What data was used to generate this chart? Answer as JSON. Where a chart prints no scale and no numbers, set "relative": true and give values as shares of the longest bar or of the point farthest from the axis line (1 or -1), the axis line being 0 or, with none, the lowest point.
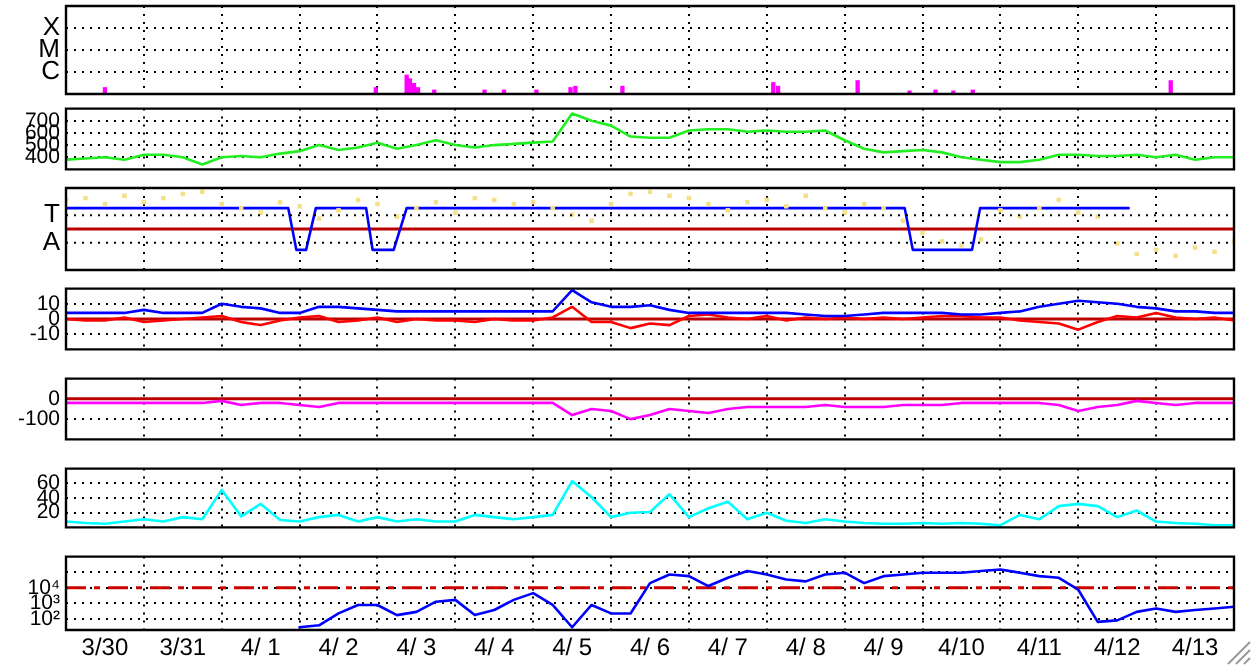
{
  "chart_data": [
    {
      "type": "bar",
      "relative": true,
      "grid": true,
      "tick_labels": "y",
      "xlim": [
        "--03-30",
        "--04-14"
      ],
      "xticks": [
        {
          "value": "--03-30",
          "label": null
        },
        {
          "value": "--03-31",
          "label": null
        },
        {
          "value": "--04-01",
          "label": null
        },
        {
          "value": "--04-02",
          "label": null
        },
        {
          "value": "--04-03",
          "label": null
        },
        {
          "value": "--04-04",
          "label": null
        },
        {
          "value": "--04-05",
          "label": null
        },
        {
          "value": "--04-06",
          "label": null
        },
        {
          "value": "--04-07",
          "label": null
        },
        {
          "value": "--04-08",
          "label": null
        },
        {
          "value": "--04-09",
          "label": null
        },
        {
          "value": "--04-10",
          "label": null
        },
        {
          "value": "--04-11",
          "label": null
        },
        {
          "value": "--04-12",
          "label": null
        },
        {
          "value": "--04-13",
          "label": null
        },
        {
          "value": "--04-14",
          "label": null
        }
      ],
      "annotations": [
        "C",
        "M",
        "X"
      ],
      "series": [
        {
          "color": "#ff00ff",
          "x": [
            "--03-30T12:00",
            "--04-02T23:30",
            "--04-03T09:00",
            "--04-03T10:00",
            "--04-03T11:15",
            "--04-03T12:30",
            "--04-03T17:30",
            "--04-04T09:00",
            "--04-04T15:00",
            "--04-05T01:00",
            "--04-05T11:30",
            "--04-05T13:00",
            "--04-06T03:30",
            "--04-08T02:00",
            "--04-08T03:30",
            "--04-09T04:00",
            "--04-09T20:00",
            "--04-10T04:00",
            "--04-10T09:30",
            "--04-10T15:30",
            "--04-13T04:30"
          ],
          "values": [
            0.33,
            0.33,
            1,
            0.8,
            0.55,
            0.33,
            0.2,
            0.2,
            0.2,
            0.2,
            0.33,
            0.4,
            0.4,
            0.6,
            0.4,
            0.7,
            0.15,
            0.2,
            0.15,
            0.2,
            0.7
          ]
        }
      ]
    },
    {
      "type": "line",
      "grid": true,
      "tick_labels": "y",
      "marker": "none",
      "xlim": [
        "--03-30",
        "--04-14"
      ],
      "xticks": [
        {
          "value": "--03-30",
          "label": null
        },
        {
          "value": "--03-31",
          "label": null
        },
        {
          "value": "--04-01",
          "label": null
        },
        {
          "value": "--04-02",
          "label": null
        },
        {
          "value": "--04-03",
          "label": null
        },
        {
          "value": "--04-04",
          "label": null
        },
        {
          "value": "--04-05",
          "label": null
        },
        {
          "value": "--04-06",
          "label": null
        },
        {
          "value": "--04-07",
          "label": null
        },
        {
          "value": "--04-08",
          "label": null
        },
        {
          "value": "--04-09",
          "label": null
        },
        {
          "value": "--04-10",
          "label": null
        },
        {
          "value": "--04-11",
          "label": null
        },
        {
          "value": "--04-12",
          "label": null
        },
        {
          "value": "--04-13",
          "label": null
        },
        {
          "value": "--04-14",
          "label": null
        }
      ],
      "ylim": [
        300,
        800
      ],
      "yticks": [
        400,
        500,
        600,
        700
      ],
      "x": [
        "--03-30T00:00",
        "--03-30T06:00",
        "--03-30T12:00",
        "--03-30T18:00",
        "--03-31T00:00",
        "--03-31T06:00",
        "--03-31T12:00",
        "--03-31T18:00",
        "--04-01T00:00",
        "--04-01T06:00",
        "--04-01T12:00",
        "--04-01T18:00",
        "--04-02T00:00",
        "--04-02T06:00",
        "--04-02T12:00",
        "--04-02T18:00",
        "--04-03T00:00",
        "--04-03T06:00",
        "--04-03T12:00",
        "--04-03T18:00",
        "--04-04T00:00",
        "--04-04T06:00",
        "--04-04T12:00",
        "--04-04T18:00",
        "--04-05T00:00",
        "--04-05T06:00",
        "--04-05T12:00",
        "--04-05T18:00",
        "--04-06T00:00",
        "--04-06T06:00",
        "--04-06T12:00",
        "--04-06T18:00",
        "--04-07T00:00",
        "--04-07T06:00",
        "--04-07T12:00",
        "--04-07T18:00",
        "--04-08T00:00",
        "--04-08T06:00",
        "--04-08T12:00",
        "--04-08T18:00",
        "--04-09T00:00",
        "--04-09T06:00",
        "--04-09T12:00",
        "--04-09T18:00",
        "--04-10T00:00",
        "--04-10T06:00",
        "--04-10T12:00",
        "--04-10T18:00",
        "--04-11T00:00",
        "--04-11T06:00",
        "--04-11T12:00",
        "--04-11T18:00",
        "--04-12T00:00",
        "--04-12T06:00",
        "--04-12T12:00",
        "--04-12T18:00",
        "--04-13T00:00",
        "--04-13T06:00",
        "--04-13T12:00",
        "--04-13T18:00",
        "--04-14T00:00"
      ],
      "series": [
        {
          "color": "#22ee22",
          "values": [
            380,
            390,
            400,
            380,
            420,
            420,
            400,
            340,
            400,
            410,
            400,
            430,
            450,
            500,
            460,
            480,
            520,
            470,
            500,
            540,
            500,
            480,
            500,
            510,
            520,
            530,
            760,
            700,
            660,
            570,
            560,
            560,
            620,
            630,
            630,
            610,
            620,
            610,
            610,
            620,
            540,
            470,
            440,
            450,
            460,
            440,
            400,
            380,
            360,
            360,
            380,
            420,
            420,
            410,
            410,
            420,
            400,
            420,
            380,
            400,
            400
          ]
        }
      ]
    },
    {
      "type": "line",
      "relative": true,
      "grid": true,
      "tick_labels": "y",
      "xlim": [
        "--03-30",
        "--04-14"
      ],
      "xticks": [
        {
          "value": "--03-30",
          "label": null
        },
        {
          "value": "--03-31",
          "label": null
        },
        {
          "value": "--04-01",
          "label": null
        },
        {
          "value": "--04-02",
          "label": null
        },
        {
          "value": "--04-03",
          "label": null
        },
        {
          "value": "--04-04",
          "label": null
        },
        {
          "value": "--04-05",
          "label": null
        },
        {
          "value": "--04-06",
          "label": null
        },
        {
          "value": "--04-07",
          "label": null
        },
        {
          "value": "--04-08",
          "label": null
        },
        {
          "value": "--04-09",
          "label": null
        },
        {
          "value": "--04-10",
          "label": null
        },
        {
          "value": "--04-11",
          "label": null
        },
        {
          "value": "--04-12",
          "label": null
        },
        {
          "value": "--04-13",
          "label": null
        },
        {
          "value": "--04-14",
          "label": null
        }
      ],
      "annotations": [
        "A",
        "T"
      ],
      "ref_lines": [
        {
          "axis": "y",
          "value": 0,
          "color": "#bb0000"
        }
      ],
      "x": [
        "--03-30T00:00",
        "--03-30T06:00",
        "--03-30T12:00",
        "--03-30T18:00",
        "--03-31T00:00",
        "--03-31T06:00",
        "--03-31T12:00",
        "--03-31T18:00",
        "--04-01T00:00",
        "--04-01T06:00",
        "--04-01T12:00",
        "--04-01T18:00",
        "--04-02T00:00",
        "--04-02T06:00",
        "--04-02T12:00",
        "--04-02T18:00",
        "--04-03T00:00",
        "--04-03T06:00",
        "--04-03T12:00",
        "--04-03T18:00",
        "--04-04T00:00",
        "--04-04T06:00",
        "--04-04T12:00",
        "--04-04T18:00",
        "--04-05T00:00",
        "--04-05T06:00",
        "--04-05T12:00",
        "--04-05T18:00",
        "--04-06T00:00",
        "--04-06T06:00",
        "--04-06T12:00",
        "--04-06T18:00",
        "--04-07T00:00",
        "--04-07T06:00",
        "--04-07T12:00",
        "--04-07T18:00",
        "--04-08T00:00",
        "--04-08T06:00",
        "--04-08T12:00",
        "--04-08T18:00",
        "--04-09T00:00",
        "--04-09T06:00",
        "--04-09T12:00",
        "--04-09T18:00",
        "--04-10T00:00",
        "--04-10T06:00",
        "--04-10T12:00",
        "--04-10T18:00",
        "--04-11T00:00",
        "--04-11T06:00",
        "--04-11T12:00",
        "--04-11T18:00",
        "--04-12T00:00",
        "--04-12T06:00",
        "--04-12T12:00",
        "--04-12T18:00",
        "--04-13T00:00",
        "--04-13T06:00",
        "--04-13T12:00",
        "--04-13T18:00",
        "--04-14T00:00"
      ],
      "series": [
        {
          "type": "scatter",
          "marker": "square",
          "color": "#f5e08a",
          "values": [
            0.78,
            0.83,
            0.67,
            0.89,
            0.72,
            0.83,
            0.94,
            1,
            0.67,
            0.56,
            0.44,
            0.72,
            0.61,
            0.28,
            0.5,
            0.78,
            0.67,
            0.33,
            0.56,
            0.72,
            0.44,
            0.83,
            0.78,
            0.67,
            0.72,
            0.56,
            0.39,
            0.22,
            0.67,
            0.94,
            1,
            0.89,
            0.83,
            0.67,
            0.5,
            0.72,
            0.78,
            0.61,
            0.89,
            0.56,
            0.44,
            0.67,
            0.56,
            0.22,
            -0.11,
            -0.33,
            -0.44,
            -0.28,
            0.5,
            0.33,
            0.56,
            0.78,
            0.44,
            0.33,
            -0.39,
            -0.67,
            -0.56,
            -0.72,
            -0.5,
            -0.61,
            -0.33
          ]
        },
        {
          "marker": "none",
          "color": "#0000ff",
          "x": [
            "--03-30T00:00",
            "--04-01T20:30",
            "--04-01T23:00",
            "--04-02T02:00",
            "--04-02T05:00",
            "--04-02T20:30",
            "--04-02T22:30",
            "--04-03T05:00",
            "--04-03T09:00",
            "--04-09T18:30",
            "--04-09T21:00",
            "--04-10T15:15",
            "--04-10T17:45",
            "--04-12T15:30"
          ],
          "values": [
            0.56,
            0.56,
            -0.56,
            -0.56,
            0.56,
            0.56,
            -0.56,
            -0.56,
            0.56,
            0.56,
            -0.56,
            -0.56,
            0.56,
            0.56
          ]
        }
      ]
    },
    {
      "type": "line",
      "grid": true,
      "tick_labels": "y",
      "marker": "none",
      "xlim": [
        "--03-30",
        "--04-14"
      ],
      "xticks": [
        {
          "value": "--03-30",
          "label": null
        },
        {
          "value": "--03-31",
          "label": null
        },
        {
          "value": "--04-01",
          "label": null
        },
        {
          "value": "--04-02",
          "label": null
        },
        {
          "value": "--04-03",
          "label": null
        },
        {
          "value": "--04-04",
          "label": null
        },
        {
          "value": "--04-05",
          "label": null
        },
        {
          "value": "--04-06",
          "label": null
        },
        {
          "value": "--04-07",
          "label": null
        },
        {
          "value": "--04-08",
          "label": null
        },
        {
          "value": "--04-09",
          "label": null
        },
        {
          "value": "--04-10",
          "label": null
        },
        {
          "value": "--04-11",
          "label": null
        },
        {
          "value": "--04-12",
          "label": null
        },
        {
          "value": "--04-13",
          "label": null
        },
        {
          "value": "--04-14",
          "label": null
        }
      ],
      "ylim": [
        -20,
        20
      ],
      "yticks": [
        -10,
        0,
        10
      ],
      "ref_lines": [
        {
          "axis": "y",
          "value": 0,
          "color": "#bb0000"
        }
      ],
      "x": [
        "--03-30T00:00",
        "--03-30T06:00",
        "--03-30T12:00",
        "--03-30T18:00",
        "--03-31T00:00",
        "--03-31T06:00",
        "--03-31T12:00",
        "--03-31T18:00",
        "--04-01T00:00",
        "--04-01T06:00",
        "--04-01T12:00",
        "--04-01T18:00",
        "--04-02T00:00",
        "--04-02T06:00",
        "--04-02T12:00",
        "--04-02T18:00",
        "--04-03T00:00",
        "--04-03T06:00",
        "--04-03T12:00",
        "--04-03T18:00",
        "--04-04T00:00",
        "--04-04T06:00",
        "--04-04T12:00",
        "--04-04T18:00",
        "--04-05T00:00",
        "--04-05T06:00",
        "--04-05T12:00",
        "--04-05T18:00",
        "--04-06T00:00",
        "--04-06T06:00",
        "--04-06T12:00",
        "--04-06T18:00",
        "--04-07T00:00",
        "--04-07T06:00",
        "--04-07T12:00",
        "--04-07T18:00",
        "--04-08T00:00",
        "--04-08T06:00",
        "--04-08T12:00",
        "--04-08T18:00",
        "--04-09T00:00",
        "--04-09T06:00",
        "--04-09T12:00",
        "--04-09T18:00",
        "--04-10T00:00",
        "--04-10T06:00",
        "--04-10T12:00",
        "--04-10T18:00",
        "--04-11T00:00",
        "--04-11T06:00",
        "--04-11T12:00",
        "--04-11T18:00",
        "--04-12T00:00",
        "--04-12T06:00",
        "--04-12T12:00",
        "--04-12T18:00",
        "--04-13T00:00",
        "--04-13T06:00",
        "--04-13T12:00",
        "--04-13T18:00",
        "--04-14T00:00"
      ],
      "series": [
        {
          "color": "#0000ff",
          "values": [
            4,
            4,
            4,
            4,
            6,
            4,
            4,
            4,
            10,
            8,
            7,
            4,
            4,
            8,
            8,
            7,
            6,
            5,
            5,
            5,
            5,
            5,
            5,
            5,
            5,
            5,
            19,
            11,
            8,
            8,
            9,
            6,
            4,
            4,
            4,
            4,
            4,
            4,
            3,
            2,
            2,
            3,
            4,
            4,
            4,
            4,
            3,
            3,
            4,
            5,
            8,
            10,
            12,
            11,
            10,
            8,
            7,
            5,
            5,
            4,
            4
          ]
        },
        {
          "color": "#ff0000",
          "values": [
            0,
            -1,
            -1,
            1,
            -2,
            -1,
            0,
            1,
            2,
            -2,
            -4,
            -1,
            1,
            2,
            -2,
            -1,
            1,
            -2,
            0,
            -1,
            -1,
            -2,
            0,
            -1,
            -1,
            1,
            8,
            -2,
            -2,
            -6,
            -3,
            -4,
            2,
            3,
            1,
            0,
            2,
            -1,
            1,
            0,
            1,
            0,
            1,
            0,
            1,
            2,
            2,
            1,
            1,
            -1,
            -2,
            -3,
            -7,
            -2,
            2,
            1,
            4,
            1,
            0,
            1,
            -1
          ]
        }
      ]
    },
    {
      "type": "line",
      "grid": true,
      "tick_labels": "y",
      "marker": "none",
      "xlim": [
        "--03-30",
        "--04-14"
      ],
      "xticks": [
        {
          "value": "--03-30",
          "label": null
        },
        {
          "value": "--03-31",
          "label": null
        },
        {
          "value": "--04-01",
          "label": null
        },
        {
          "value": "--04-02",
          "label": null
        },
        {
          "value": "--04-03",
          "label": null
        },
        {
          "value": "--04-04",
          "label": null
        },
        {
          "value": "--04-05",
          "label": null
        },
        {
          "value": "--04-06",
          "label": null
        },
        {
          "value": "--04-07",
          "label": null
        },
        {
          "value": "--04-08",
          "label": null
        },
        {
          "value": "--04-09",
          "label": null
        },
        {
          "value": "--04-10",
          "label": null
        },
        {
          "value": "--04-11",
          "label": null
        },
        {
          "value": "--04-12",
          "label": null
        },
        {
          "value": "--04-13",
          "label": null
        },
        {
          "value": "--04-14",
          "label": null
        }
      ],
      "ylim": [
        -200,
        100
      ],
      "yticks": [
        -100,
        0
      ],
      "ref_lines": [
        {
          "axis": "y",
          "value": 0,
          "color": "#bb0000"
        }
      ],
      "x": [
        "--03-30T00:00",
        "--03-30T06:00",
        "--03-30T12:00",
        "--03-30T18:00",
        "--03-31T00:00",
        "--03-31T06:00",
        "--03-31T12:00",
        "--03-31T18:00",
        "--04-01T00:00",
        "--04-01T06:00",
        "--04-01T12:00",
        "--04-01T18:00",
        "--04-02T00:00",
        "--04-02T06:00",
        "--04-02T12:00",
        "--04-02T18:00",
        "--04-03T00:00",
        "--04-03T06:00",
        "--04-03T12:00",
        "--04-03T18:00",
        "--04-04T00:00",
        "--04-04T06:00",
        "--04-04T12:00",
        "--04-04T18:00",
        "--04-05T00:00",
        "--04-05T06:00",
        "--04-05T12:00",
        "--04-05T18:00",
        "--04-06T00:00",
        "--04-06T06:00",
        "--04-06T12:00",
        "--04-06T18:00",
        "--04-07T00:00",
        "--04-07T06:00",
        "--04-07T12:00",
        "--04-07T18:00",
        "--04-08T00:00",
        "--04-08T06:00",
        "--04-08T12:00",
        "--04-08T18:00",
        "--04-09T00:00",
        "--04-09T06:00",
        "--04-09T12:00",
        "--04-09T18:00",
        "--04-10T00:00",
        "--04-10T06:00",
        "--04-10T12:00",
        "--04-10T18:00",
        "--04-11T00:00",
        "--04-11T06:00",
        "--04-11T12:00",
        "--04-11T18:00",
        "--04-12T00:00",
        "--04-12T06:00",
        "--04-12T12:00",
        "--04-12T18:00",
        "--04-13T00:00",
        "--04-13T06:00",
        "--04-13T12:00",
        "--04-13T18:00",
        "--04-14T00:00"
      ],
      "series": [
        {
          "color": "#ff00ff",
          "values": [
            -20,
            -20,
            -20,
            -20,
            -20,
            -20,
            -20,
            -20,
            -10,
            -30,
            -20,
            -20,
            -30,
            -40,
            -20,
            -20,
            -20,
            -20,
            -20,
            -20,
            -20,
            -20,
            -20,
            -20,
            -20,
            -20,
            -80,
            -50,
            -60,
            -100,
            -80,
            -50,
            -60,
            -70,
            -50,
            -40,
            -40,
            -40,
            -40,
            -30,
            -40,
            -40,
            -40,
            -30,
            -30,
            -30,
            -20,
            -20,
            -20,
            -20,
            -20,
            -30,
            -60,
            -40,
            -30,
            -10,
            -20,
            -30,
            -20,
            -20,
            -20
          ]
        }
      ]
    },
    {
      "type": "line",
      "grid": true,
      "tick_labels": "y",
      "marker": "none",
      "xlim": [
        "--03-30",
        "--04-14"
      ],
      "xticks": [
        {
          "value": "--03-30",
          "label": null
        },
        {
          "value": "--03-31",
          "label": null
        },
        {
          "value": "--04-01",
          "label": null
        },
        {
          "value": "--04-02",
          "label": null
        },
        {
          "value": "--04-03",
          "label": null
        },
        {
          "value": "--04-04",
          "label": null
        },
        {
          "value": "--04-05",
          "label": null
        },
        {
          "value": "--04-06",
          "label": null
        },
        {
          "value": "--04-07",
          "label": null
        },
        {
          "value": "--04-08",
          "label": null
        },
        {
          "value": "--04-09",
          "label": null
        },
        {
          "value": "--04-10",
          "label": null
        },
        {
          "value": "--04-11",
          "label": null
        },
        {
          "value": "--04-12",
          "label": null
        },
        {
          "value": "--04-13",
          "label": null
        },
        {
          "value": "--04-14",
          "label": null
        }
      ],
      "ylim": [
        0,
        80
      ],
      "yticks": [
        20,
        40,
        60
      ],
      "x": [
        "--03-30T00:00",
        "--03-30T06:00",
        "--03-30T12:00",
        "--03-30T18:00",
        "--03-31T00:00",
        "--03-31T06:00",
        "--03-31T12:00",
        "--03-31T18:00",
        "--04-01T00:00",
        "--04-01T06:00",
        "--04-01T12:00",
        "--04-01T18:00",
        "--04-02T00:00",
        "--04-02T06:00",
        "--04-02T12:00",
        "--04-02T18:00",
        "--04-03T00:00",
        "--04-03T06:00",
        "--04-03T12:00",
        "--04-03T18:00",
        "--04-04T00:00",
        "--04-04T06:00",
        "--04-04T12:00",
        "--04-04T18:00",
        "--04-05T00:00",
        "--04-05T06:00",
        "--04-05T12:00",
        "--04-05T18:00",
        "--04-06T00:00",
        "--04-06T06:00",
        "--04-06T12:00",
        "--04-06T18:00",
        "--04-07T00:00",
        "--04-07T06:00",
        "--04-07T12:00",
        "--04-07T18:00",
        "--04-08T00:00",
        "--04-08T06:00",
        "--04-08T12:00",
        "--04-08T18:00",
        "--04-09T00:00",
        "--04-09T06:00",
        "--04-09T12:00",
        "--04-09T18:00",
        "--04-10T00:00",
        "--04-10T06:00",
        "--04-10T12:00",
        "--04-10T18:00",
        "--04-11T00:00",
        "--04-11T06:00",
        "--04-11T12:00",
        "--04-11T18:00",
        "--04-12T00:00",
        "--04-12T06:00",
        "--04-12T12:00",
        "--04-12T18:00",
        "--04-13T00:00",
        "--04-13T06:00",
        "--04-13T12:00",
        "--04-13T18:00",
        "--04-14T00:00"
      ],
      "series": [
        {
          "color": "#00ffff",
          "values": [
            8,
            6,
            5,
            8,
            11,
            8,
            14,
            11,
            51,
            15,
            32,
            10,
            8,
            14,
            17,
            8,
            14,
            8,
            11,
            8,
            8,
            17,
            14,
            11,
            14,
            17,
            63,
            41,
            14,
            20,
            21,
            45,
            14,
            26,
            35,
            11,
            20,
            9,
            6,
            11,
            8,
            6,
            5,
            5,
            6,
            5,
            6,
            5,
            3,
            17,
            11,
            29,
            32,
            29,
            14,
            23,
            8,
            6,
            5,
            3,
            3
          ]
        }
      ]
    },
    {
      "type": "line",
      "log": true,
      "grid": true,
      "marker": "none",
      "xlim": [
        "--03-30",
        "--04-14"
      ],
      "xticks": [
        {
          "value": "--03-30",
          "label": null
        },
        {
          "value": "--03-30T12:00",
          "label": "3/30"
        },
        {
          "value": "--03-31",
          "label": null
        },
        {
          "value": "--03-31T12:00",
          "label": "3/31"
        },
        {
          "value": "--04-01",
          "label": null
        },
        {
          "value": "--04-01T12:00",
          "label": "4/ 1"
        },
        {
          "value": "--04-02",
          "label": null
        },
        {
          "value": "--04-02T12:00",
          "label": "4/ 2"
        },
        {
          "value": "--04-03",
          "label": null
        },
        {
          "value": "--04-03T12:00",
          "label": "4/ 3"
        },
        {
          "value": "--04-04",
          "label": null
        },
        {
          "value": "--04-04T12:00",
          "label": "4/ 4"
        },
        {
          "value": "--04-05",
          "label": null
        },
        {
          "value": "--04-05T12:00",
          "label": "4/ 5"
        },
        {
          "value": "--04-06",
          "label": null
        },
        {
          "value": "--04-06T12:00",
          "label": "4/ 6"
        },
        {
          "value": "--04-07",
          "label": null
        },
        {
          "value": "--04-07T12:00",
          "label": "4/ 7"
        },
        {
          "value": "--04-08",
          "label": null
        },
        {
          "value": "--04-08T12:00",
          "label": "4/ 8"
        },
        {
          "value": "--04-09",
          "label": null
        },
        {
          "value": "--04-09T12:00",
          "label": "4/ 9"
        },
        {
          "value": "--04-10",
          "label": null
        },
        {
          "value": "--04-10T12:00",
          "label": "4/10"
        },
        {
          "value": "--04-11",
          "label": null
        },
        {
          "value": "--04-11T12:00",
          "label": "4/11"
        },
        {
          "value": "--04-12",
          "label": null
        },
        {
          "value": "--04-12T12:00",
          "label": "4/12"
        },
        {
          "value": "--04-13",
          "label": null
        },
        {
          "value": "--04-13T12:00",
          "label": "4/13"
        },
        {
          "value": "--04-14",
          "label": null
        }
      ],
      "ylim": [
        20,
        1000000
      ],
      "yticks": [
        {
          "value": 100,
          "label": "10²"
        },
        {
          "value": 1000,
          "label": "10³"
        },
        {
          "value": 10000,
          "label": "10⁴"
        },
        {
          "value": 100000,
          "label": null
        }
      ],
      "ref_lines": [
        {
          "axis": "y",
          "value": 10000,
          "color": "#cc0000",
          "line_style": "dashed"
        }
      ],
      "series": [
        {
          "color": "#0000ff",
          "x": [
            "--04-02T00:00",
            "--04-02T06:00",
            "--04-02T12:00",
            "--04-02T18:00",
            "--04-03T00:00",
            "--04-03T06:00",
            "--04-03T12:00",
            "--04-03T18:00",
            "--04-04T00:00",
            "--04-04T06:00",
            "--04-04T12:00",
            "--04-04T18:00",
            "--04-05T00:00",
            "--04-05T06:00",
            "--04-05T12:00",
            "--04-05T18:00",
            "--04-06T00:00",
            "--04-06T06:00",
            "--04-06T12:00",
            "--04-06T18:00",
            "--04-07T00:00",
            "--04-07T06:00",
            "--04-07T12:00",
            "--04-07T18:00",
            "--04-08T00:00",
            "--04-08T06:00",
            "--04-08T12:00",
            "--04-08T18:00",
            "--04-09T00:00",
            "--04-09T06:00",
            "--04-09T12:00",
            "--04-09T18:00",
            "--04-10T00:00",
            "--04-10T06:00",
            "--04-10T12:00",
            "--04-10T18:00",
            "--04-11T00:00",
            "--04-11T06:00",
            "--04-11T12:00",
            "--04-11T18:00",
            "--04-12T00:00",
            "--04-12T06:00",
            "--04-12T12:00",
            "--04-12T18:00",
            "--04-13T00:00",
            "--04-13T06:00",
            "--04-13T12:00",
            "--04-13T18:00",
            "--04-14T00:00"
          ],
          "values": [
            30,
            40,
            230,
            800,
            800,
            180,
            290,
            1300,
            1700,
            180,
            380,
            1700,
            4600,
            800,
            30,
            800,
            230,
            230,
            20000,
            72000,
            56000,
            13000,
            44000,
            120000,
            72000,
            34000,
            26000,
            72000,
            93000,
            20000,
            56000,
            72000,
            93000,
            93000,
            93000,
            120000,
            150000,
            93000,
            56000,
            44000,
            7600,
            66,
            83,
            290,
            480,
            290,
            380,
            480,
            620
          ]
        }
      ]
    }
  ]
}
